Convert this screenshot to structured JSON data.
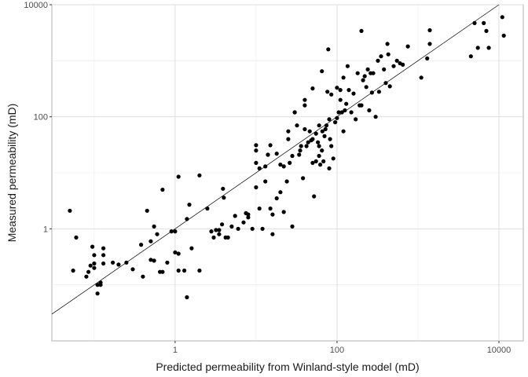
{
  "chart_data": {
    "type": "scatter",
    "title": "",
    "xlabel": "Predicted permeability from Winland-style model (mD)",
    "ylabel": "Measured permeability (mD)",
    "x_scale": "log10",
    "y_scale": "log10",
    "xlim": [
      0.03,
      20000
    ],
    "ylim": [
      0.01,
      10000
    ],
    "x_ticks": [
      {
        "value": 1,
        "label": "1"
      },
      {
        "value": 100,
        "label": "100"
      },
      {
        "value": 10000,
        "label": "10000"
      }
    ],
    "y_ticks": [
      {
        "value": 1,
        "label": "1"
      },
      {
        "value": 100,
        "label": "100"
      },
      {
        "value": 10000,
        "label": "10000"
      }
    ],
    "grid": true,
    "reference_line": "y = x",
    "series": [
      {
        "points": [
          [
            0.05,
            2.1
          ],
          [
            0.06,
            0.7
          ],
          [
            0.055,
            0.18
          ],
          [
            0.085,
            0.17
          ],
          [
            0.08,
            0.14
          ],
          [
            0.09,
            0.22
          ],
          [
            0.095,
            0.48
          ],
          [
            0.1,
            0.34
          ],
          [
            0.1,
            0.24
          ],
          [
            0.1,
            0.2
          ],
          [
            0.11,
            0.1
          ],
          [
            0.11,
            0.07
          ],
          [
            0.12,
            0.11
          ],
          [
            0.12,
            0.1
          ],
          [
            0.13,
            0.45
          ],
          [
            0.13,
            0.34
          ],
          [
            0.13,
            0.24
          ],
          [
            0.17,
            0.25
          ],
          [
            0.2,
            0.23
          ],
          [
            0.25,
            0.25
          ],
          [
            0.3,
            0.19
          ],
          [
            0.38,
            0.52
          ],
          [
            0.4,
            0.14
          ],
          [
            0.45,
            2.1
          ],
          [
            0.5,
            0.6
          ],
          [
            0.55,
            1.1
          ],
          [
            0.5,
            0.28
          ],
          [
            0.55,
            0.27
          ],
          [
            0.6,
            0.8
          ],
          [
            0.7,
            0.17
          ],
          [
            0.65,
            0.17
          ],
          [
            0.7,
            5.0
          ],
          [
            0.8,
            0.25
          ],
          [
            0.9,
            0.9
          ],
          [
            1.0,
            0.9
          ],
          [
            1.0,
            0.38
          ],
          [
            1.1,
            8.5
          ],
          [
            1.1,
            0.36
          ],
          [
            1.1,
            0.18
          ],
          [
            1.3,
            0.18
          ],
          [
            1.4,
            1.5
          ],
          [
            1.5,
            2.7
          ],
          [
            1.4,
            0.06
          ],
          [
            1.6,
            0.45
          ],
          [
            2.0,
            9.0
          ],
          [
            2.0,
            0.18
          ],
          [
            2.5,
            2.3
          ],
          [
            2.8,
            0.9
          ],
          [
            3.0,
            0.7
          ],
          [
            3.2,
            0.95
          ],
          [
            3.5,
            0.8
          ],
          [
            3.5,
            0.95
          ],
          [
            3.8,
            1.2
          ],
          [
            3.9,
            5.2
          ],
          [
            4.0,
            3.6
          ],
          [
            4.2,
            0.7
          ],
          [
            4.5,
            0.7
          ],
          [
            5.0,
            1.1
          ],
          [
            5.5,
            1.7
          ],
          [
            6.0,
            1.0
          ],
          [
            7.0,
            1.3
          ],
          [
            7.5,
            1.9
          ],
          [
            8.0,
            1.8
          ],
          [
            8.0,
            1.6
          ],
          [
            9.0,
            1.0
          ],
          [
            10,
            5.5
          ],
          [
            10,
            15
          ],
          [
            10,
            31
          ],
          [
            10,
            25
          ],
          [
            11,
            12
          ],
          [
            11,
            2.3
          ],
          [
            12,
            1.0
          ],
          [
            13,
            13
          ],
          [
            13,
            7
          ],
          [
            14,
            21
          ],
          [
            14,
            21
          ],
          [
            15,
            31
          ],
          [
            15,
            2.3
          ],
          [
            16,
            0.8
          ],
          [
            16,
            1.8
          ],
          [
            18,
            22
          ],
          [
            18,
            3.5
          ],
          [
            20,
            4.5
          ],
          [
            20,
            14
          ],
          [
            22,
            13
          ],
          [
            22,
            2.0
          ],
          [
            24,
            7
          ],
          [
            25,
            55
          ],
          [
            25,
            40
          ],
          [
            26,
            15
          ],
          [
            28,
            20
          ],
          [
            28,
            1.1
          ],
          [
            30,
            120
          ],
          [
            30,
            120
          ],
          [
            32,
            70
          ],
          [
            34,
            21
          ],
          [
            35,
            25
          ],
          [
            36,
            30
          ],
          [
            38,
            8
          ],
          [
            40,
            60
          ],
          [
            40,
            160
          ],
          [
            40,
            200
          ],
          [
            42,
            30
          ],
          [
            44,
            35
          ],
          [
            46,
            55
          ],
          [
            48,
            38
          ],
          [
            50,
            40
          ],
          [
            50,
            320
          ],
          [
            50,
            15
          ],
          [
            52,
            3.8
          ],
          [
            55,
            50
          ],
          [
            55,
            16
          ],
          [
            58,
            35
          ],
          [
            60,
            20
          ],
          [
            60,
            30
          ],
          [
            60,
            70
          ],
          [
            62,
            14
          ],
          [
            65,
            25
          ],
          [
            65,
            650
          ],
          [
            66,
            55
          ],
          [
            68,
            16
          ],
          [
            70,
            45
          ],
          [
            72,
            60
          ],
          [
            74,
            70
          ],
          [
            76,
            280
          ],
          [
            78,
            1600
          ],
          [
            80,
            90
          ],
          [
            80,
            12
          ],
          [
            82,
            40
          ],
          [
            85,
            250
          ],
          [
            85,
            30
          ],
          [
            90,
            18
          ],
          [
            95,
            80
          ],
          [
            100,
            330
          ],
          [
            100,
            95
          ],
          [
            105,
            120
          ],
          [
            110,
            300
          ],
          [
            110,
            200
          ],
          [
            115,
            120
          ],
          [
            120,
            500
          ],
          [
            120,
            55
          ],
          [
            125,
            130
          ],
          [
            130,
            170
          ],
          [
            135,
            800
          ],
          [
            140,
            300
          ],
          [
            150,
            120
          ],
          [
            160,
            260
          ],
          [
            170,
            90
          ],
          [
            180,
            600
          ],
          [
            190,
            160
          ],
          [
            200,
            160
          ],
          [
            200,
            3400
          ],
          [
            210,
            450
          ],
          [
            220,
            530
          ],
          [
            230,
            340
          ],
          [
            240,
            700
          ],
          [
            250,
            130
          ],
          [
            260,
            600
          ],
          [
            270,
            270
          ],
          [
            280,
            600
          ],
          [
            300,
            100
          ],
          [
            320,
            1000
          ],
          [
            330,
            280
          ],
          [
            350,
            1200
          ],
          [
            380,
            700
          ],
          [
            400,
            400
          ],
          [
            420,
            2000
          ],
          [
            430,
            1300
          ],
          [
            450,
            350
          ],
          [
            500,
            800
          ],
          [
            550,
            1000
          ],
          [
            600,
            900
          ],
          [
            650,
            850
          ],
          [
            750,
            1800
          ],
          [
            1100,
            500
          ],
          [
            1300,
            1100
          ],
          [
            1400,
            3500
          ],
          [
            1400,
            2000
          ],
          [
            4500,
            1200
          ],
          [
            5000,
            4700
          ],
          [
            5500,
            1700
          ],
          [
            6500,
            4700
          ],
          [
            7000,
            3400
          ],
          [
            7500,
            1700
          ],
          [
            11000,
            6000
          ],
          [
            11500,
            2800
          ]
        ]
      }
    ]
  }
}
